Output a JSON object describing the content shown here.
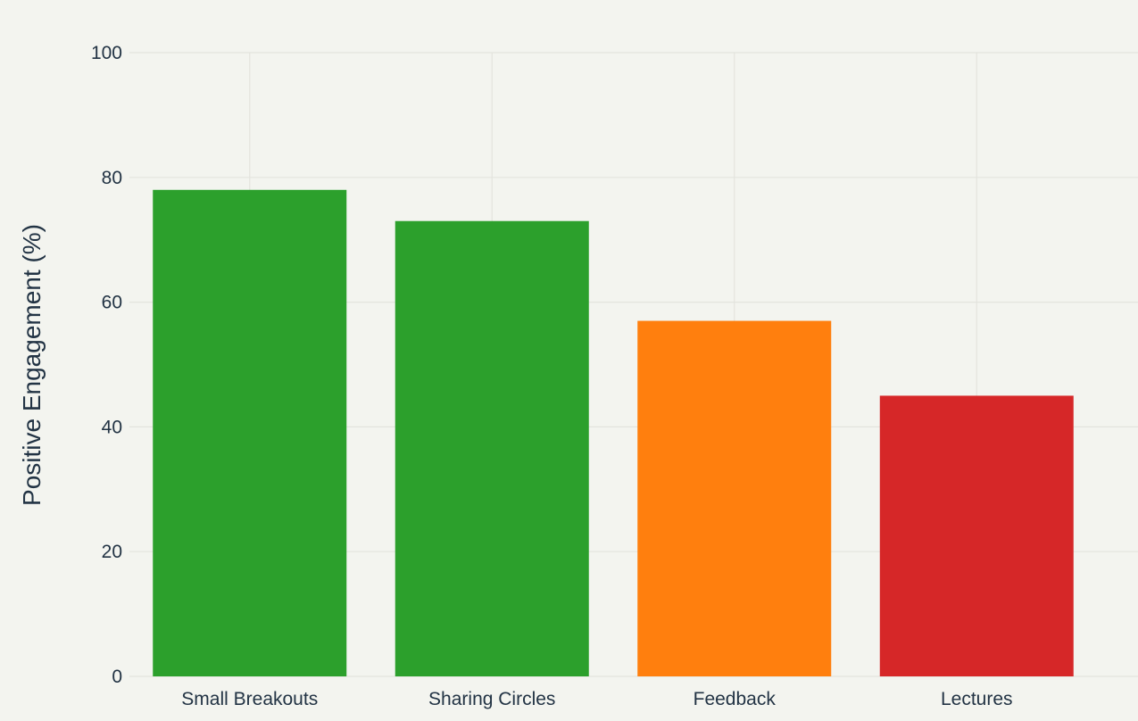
{
  "chart_data": {
    "type": "bar",
    "title": "",
    "xlabel": "",
    "ylabel": "Positive Engagement (%)",
    "categories": [
      "Small Breakouts",
      "Sharing Circles",
      "Feedback",
      "Lectures"
    ],
    "values": [
      78,
      73,
      57,
      45
    ],
    "bar_colors": [
      "#2ca02c",
      "#2ca02c",
      "#ff7f0e",
      "#d62728"
    ],
    "ylim": [
      0,
      100
    ],
    "yticks": [
      0,
      20,
      40,
      60,
      80,
      100
    ],
    "grid": true,
    "legend": "none",
    "background_color": "#f3f4ef",
    "grid_color": "#e3e4de",
    "text_color": "#223344"
  }
}
